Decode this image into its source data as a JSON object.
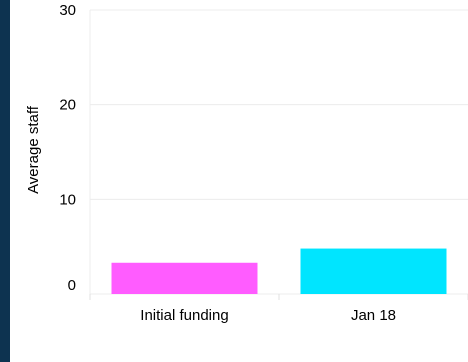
{
  "chart_data": {
    "type": "bar",
    "ylabel": "Average staff",
    "xlabel": "",
    "categories": [
      "Initial funding",
      "Jan 18"
    ],
    "values": [
      3.3,
      4.8
    ],
    "colors": [
      "#ff5cff",
      "#00e5ff"
    ],
    "ylim": [
      0,
      30
    ],
    "yticks": [
      0,
      10,
      20,
      30
    ],
    "grid": true
  }
}
